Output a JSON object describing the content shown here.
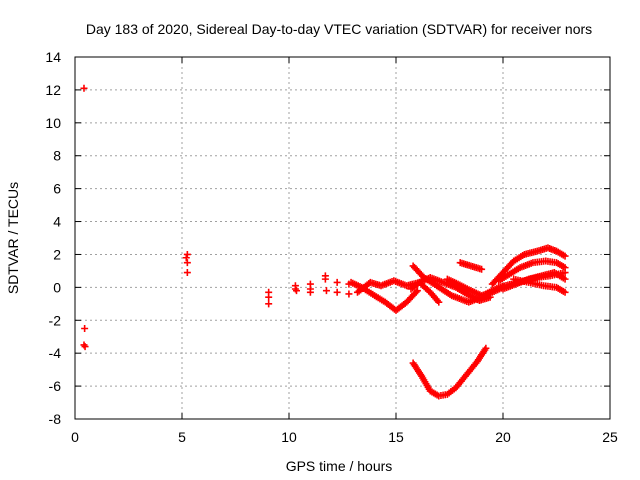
{
  "chart_data": {
    "type": "scatter",
    "title": "Day 183 of 2020, Sidereal Day-to-day VTEC variation (SDTVAR) for receiver nors",
    "xlabel": "GPS time / hours",
    "ylabel": "SDTVAR / TECUs",
    "xlim": [
      0,
      25
    ],
    "ylim": [
      -8,
      14
    ],
    "xticks": [
      0,
      5,
      10,
      15,
      20,
      25
    ],
    "yticks": [
      -8,
      -6,
      -4,
      -2,
      0,
      2,
      4,
      6,
      8,
      10,
      12,
      14
    ],
    "grid": true,
    "marker": "+",
    "series_color": "#ff0000",
    "isolated_points": [
      {
        "x": 0.42,
        "y": 12.1
      },
      {
        "x": 0.45,
        "y": -2.5
      },
      {
        "x": 0.42,
        "y": -3.5
      },
      {
        "x": 0.47,
        "y": -3.6
      },
      {
        "x": 5.25,
        "y": 2.0
      },
      {
        "x": 5.25,
        "y": 1.5
      },
      {
        "x": 5.25,
        "y": 0.9
      },
      {
        "x": 5.2,
        "y": 1.8
      },
      {
        "x": 9.05,
        "y": -0.3
      },
      {
        "x": 9.05,
        "y": -0.6
      },
      {
        "x": 9.05,
        "y": -1.0
      },
      {
        "x": 10.3,
        "y": 0.1
      },
      {
        "x": 10.3,
        "y": -0.1
      },
      {
        "x": 10.35,
        "y": -0.2
      },
      {
        "x": 11.0,
        "y": 0.2
      },
      {
        "x": 11.0,
        "y": -0.1
      },
      {
        "x": 11.0,
        "y": -0.3
      },
      {
        "x": 11.7,
        "y": 0.7
      },
      {
        "x": 11.7,
        "y": 0.5
      },
      {
        "x": 11.75,
        "y": -0.2
      },
      {
        "x": 12.25,
        "y": 0.3
      },
      {
        "x": 12.25,
        "y": -0.3
      },
      {
        "x": 12.8,
        "y": 0.2
      },
      {
        "x": 12.8,
        "y": -0.4
      }
    ],
    "tracks": [
      {
        "name": "track-1",
        "points": [
          [
            12.9,
            0.3
          ],
          [
            13.4,
            0.0
          ],
          [
            14.0,
            -0.5
          ],
          [
            14.5,
            -0.9
          ],
          [
            15.0,
            -1.4
          ],
          [
            15.5,
            -0.9
          ],
          [
            16.0,
            -0.2
          ]
        ]
      },
      {
        "name": "track-2",
        "points": [
          [
            13.2,
            -0.3
          ],
          [
            13.8,
            0.3
          ],
          [
            14.3,
            0.1
          ],
          [
            14.9,
            0.4
          ],
          [
            15.5,
            0.1
          ],
          [
            16.1,
            0.3
          ],
          [
            16.6,
            -0.3
          ],
          [
            17.0,
            -0.9
          ]
        ]
      },
      {
        "name": "track-3",
        "points": [
          [
            15.7,
            -0.1
          ],
          [
            16.1,
            0.3
          ],
          [
            16.6,
            0.6
          ],
          [
            17.2,
            0.3
          ],
          [
            17.8,
            0.0
          ],
          [
            18.3,
            -0.4
          ],
          [
            18.9,
            -0.8
          ],
          [
            19.4,
            -0.6
          ]
        ]
      },
      {
        "name": "track-4",
        "points": [
          [
            15.8,
            1.3
          ],
          [
            16.3,
            0.6
          ],
          [
            16.9,
            0.1
          ],
          [
            17.6,
            -0.5
          ],
          [
            18.4,
            -0.9
          ],
          [
            19.0,
            -0.6
          ]
        ]
      },
      {
        "name": "track-5",
        "points": [
          [
            17.4,
            0.5
          ],
          [
            17.9,
            0.2
          ],
          [
            18.5,
            -0.2
          ],
          [
            19.0,
            -0.5
          ],
          [
            19.5,
            -0.3
          ],
          [
            20.0,
            0.0
          ]
        ]
      },
      {
        "name": "track-6",
        "points": [
          [
            18.0,
            1.5
          ],
          [
            18.5,
            1.3
          ],
          [
            19.0,
            1.1
          ]
        ]
      },
      {
        "name": "track-7",
        "points": [
          [
            19.2,
            -0.4
          ],
          [
            19.8,
            0.0
          ],
          [
            20.4,
            0.2
          ],
          [
            21.0,
            0.4
          ],
          [
            21.6,
            0.6
          ],
          [
            22.2,
            0.7
          ],
          [
            22.9,
            0.9
          ]
        ]
      },
      {
        "name": "track-8",
        "points": [
          [
            19.5,
            0.2
          ],
          [
            20.0,
            0.9
          ],
          [
            20.5,
            1.6
          ],
          [
            21.0,
            2.0
          ],
          [
            21.6,
            2.2
          ],
          [
            22.1,
            2.4
          ],
          [
            22.5,
            2.2
          ],
          [
            22.9,
            1.9
          ]
        ]
      },
      {
        "name": "track-9",
        "points": [
          [
            19.8,
            0.4
          ],
          [
            20.3,
            0.8
          ],
          [
            20.8,
            1.2
          ],
          [
            21.4,
            1.5
          ],
          [
            22.0,
            1.6
          ],
          [
            22.5,
            1.5
          ],
          [
            22.9,
            1.2
          ]
        ]
      },
      {
        "name": "track-10",
        "points": [
          [
            20.0,
            -0.1
          ],
          [
            20.6,
            0.2
          ],
          [
            21.2,
            0.5
          ],
          [
            21.8,
            0.7
          ],
          [
            22.4,
            0.9
          ],
          [
            22.9,
            0.5
          ]
        ]
      },
      {
        "name": "track-11",
        "points": [
          [
            20.5,
            0.5
          ],
          [
            21.2,
            0.3
          ],
          [
            21.9,
            0.1
          ],
          [
            22.5,
            0.0
          ],
          [
            22.9,
            -0.3
          ]
        ]
      },
      {
        "name": "track-12",
        "points": [
          [
            15.8,
            -4.6
          ],
          [
            16.2,
            -5.4
          ],
          [
            16.6,
            -6.3
          ],
          [
            17.0,
            -6.6
          ],
          [
            17.4,
            -6.5
          ],
          [
            17.8,
            -6.1
          ],
          [
            18.3,
            -5.3
          ],
          [
            18.8,
            -4.5
          ],
          [
            19.2,
            -3.7
          ]
        ]
      }
    ]
  }
}
